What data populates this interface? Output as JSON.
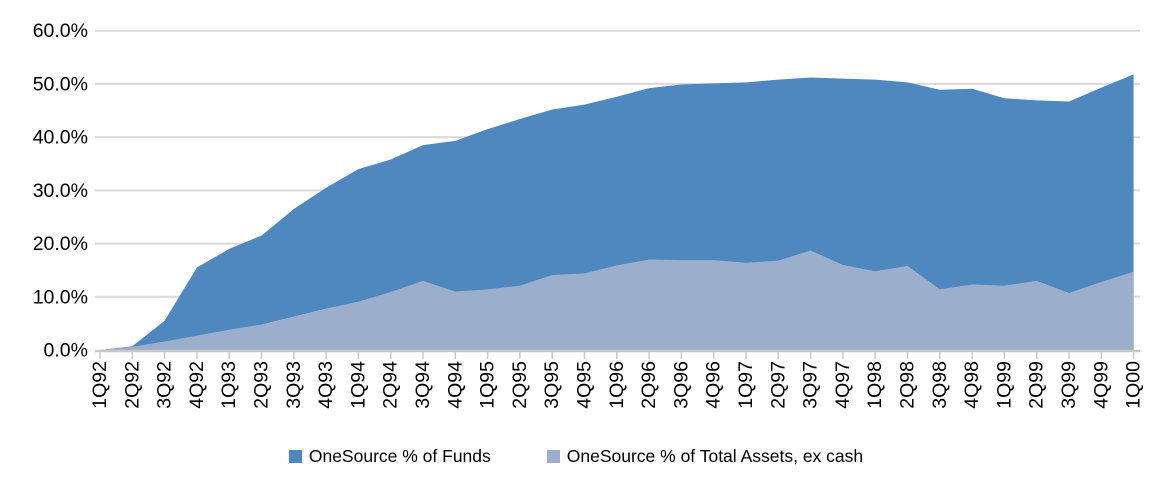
{
  "chart_data": {
    "type": "area",
    "title": "",
    "categories": [
      "1Q92",
      "2Q92",
      "3Q92",
      "4Q92",
      "1Q93",
      "2Q93",
      "3Q93",
      "4Q93",
      "1Q94",
      "2Q94",
      "3Q94",
      "4Q94",
      "1Q95",
      "2Q95",
      "3Q95",
      "4Q95",
      "1Q96",
      "2Q96",
      "3Q96",
      "4Q96",
      "1Q97",
      "2Q97",
      "3Q97",
      "4Q97",
      "1Q98",
      "2Q98",
      "3Q98",
      "4Q98",
      "1Q99",
      "2Q99",
      "3Q99",
      "4Q99",
      "1Q00"
    ],
    "series": [
      {
        "name": "OneSource % of Funds",
        "color": "#4e88be",
        "values": [
          0.0,
          0.7,
          5.5,
          15.5,
          19.0,
          21.5,
          26.5,
          30.5,
          34.0,
          35.8,
          38.5,
          39.3,
          41.5,
          43.4,
          45.2,
          46.1,
          47.6,
          49.2,
          49.9,
          50.1,
          50.3,
          50.8,
          51.2,
          51.0,
          50.8,
          50.3,
          48.9,
          49.1,
          47.3,
          46.9,
          46.7,
          49.3,
          51.8
        ]
      },
      {
        "name": "OneSource % of Total Assets, ex cash",
        "color": "#9bafcc",
        "values": [
          0.0,
          0.6,
          1.6,
          2.7,
          3.8,
          4.8,
          6.3,
          7.8,
          9.1,
          10.9,
          13.0,
          11.0,
          11.4,
          12.1,
          14.1,
          14.4,
          15.9,
          17.0,
          16.9,
          16.9,
          16.4,
          16.8,
          18.7,
          16.0,
          14.8,
          15.8,
          11.4,
          12.3,
          12.1,
          13.0,
          10.7,
          12.8,
          14.7
        ]
      }
    ],
    "xlabel": "",
    "ylabel": "",
    "ylim": [
      0,
      60
    ],
    "ytick_labels": [
      "0.0%",
      "10.0%",
      "20.0%",
      "30.0%",
      "40.0%",
      "50.0%",
      "60.0%"
    ],
    "grid": "horizontal",
    "gridline_color": "#d9d9d9",
    "axis_color": "#c8c8c8",
    "legend_position": "bottom"
  }
}
